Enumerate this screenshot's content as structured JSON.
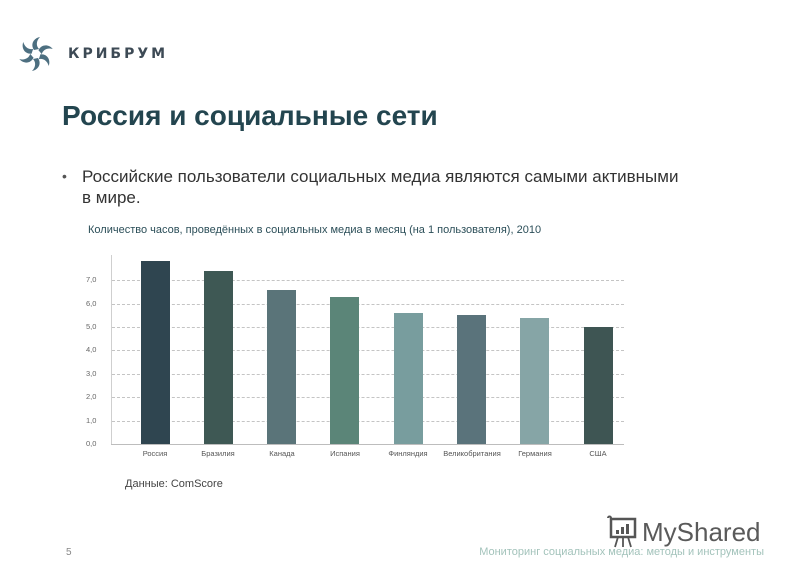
{
  "header": {
    "logo_text": "КРИБРУМ",
    "logo_icon": "pinwheel-logo-icon"
  },
  "slide": {
    "title": "Россия и социальные сети",
    "bullets": [
      "Российские пользователи социальных медиа являются самыми активными в мире."
    ],
    "source": "Данные: ComScore",
    "page_number": "5",
    "footer": "Мониторинг социальных медиа: методы и инструменты"
  },
  "watermark": {
    "text": "MyShared",
    "icon": "presentation-board-icon"
  },
  "chart_data": {
    "type": "bar",
    "title": "Количество часов, проведённых в социальных медиа в месяц (на 1 пользователя), 2010",
    "xlabel": "",
    "ylabel": "",
    "categories": [
      "Россия",
      "Бразилия",
      "Канада",
      "Испания",
      "Финляндия",
      "Великобритания",
      "Германия",
      "США"
    ],
    "values": [
      7.8,
      7.4,
      6.6,
      6.3,
      5.6,
      5.5,
      5.4,
      5.0
    ],
    "colors": [
      "#2f4550",
      "#3e5854",
      "#5a7479",
      "#5b8578",
      "#789d9e",
      "#5a737b",
      "#86a5a6",
      "#3e5553"
    ],
    "yticks": [
      "0,0",
      "1,0",
      "2,0",
      "3,0",
      "4,0",
      "5,0",
      "6,0",
      "7,0"
    ],
    "ylim": [
      0,
      8
    ],
    "grid": true,
    "grid_style": "dashed",
    "legend": null
  }
}
